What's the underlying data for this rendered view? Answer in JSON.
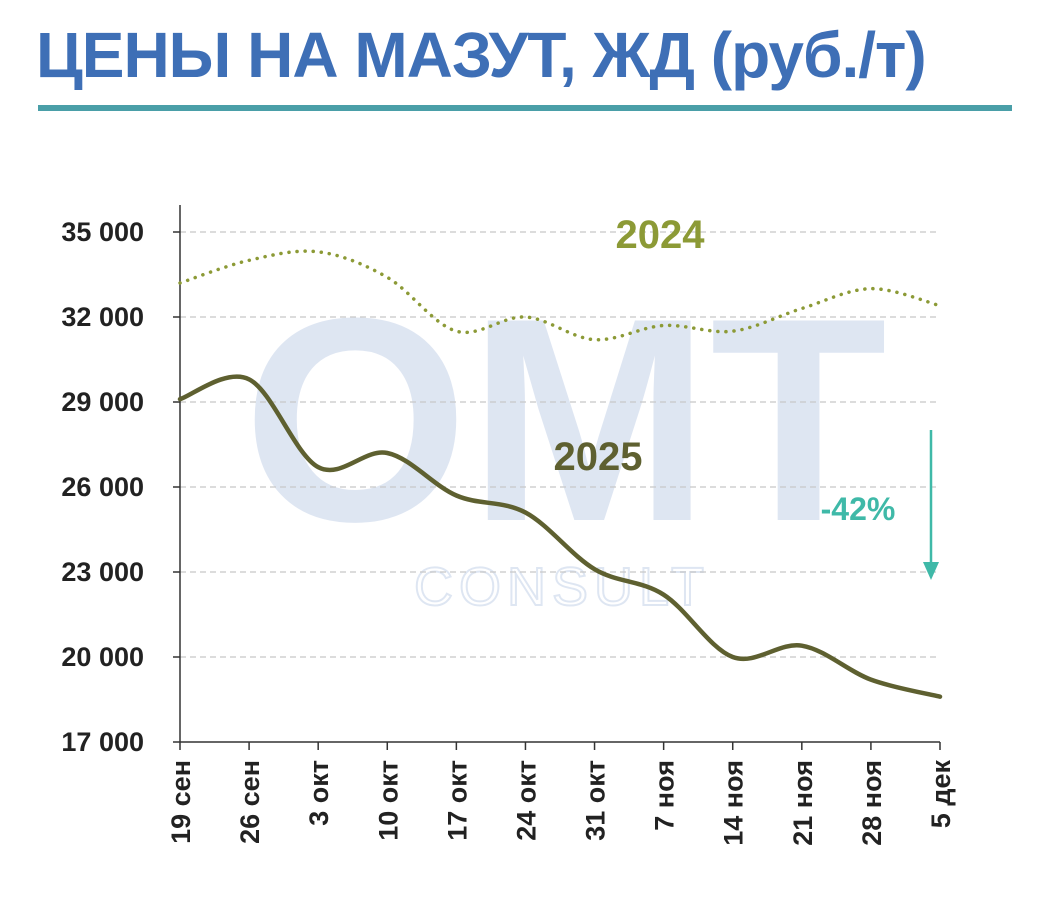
{
  "title": "ЦЕНЫ НА МАЗУТ, ЖД (руб./т)",
  "chart_data": {
    "type": "line",
    "x": [
      "19 сен",
      "26 сен",
      "3 окт",
      "10 окт",
      "17 окт",
      "24 окт",
      "31 окт",
      "7 ноя",
      "14 ноя",
      "21 ноя",
      "28 ноя",
      "5 дек"
    ],
    "ylim": [
      17000,
      35000
    ],
    "yticks": [
      17000,
      20000,
      23000,
      26000,
      29000,
      32000,
      35000
    ],
    "ytick_labels": [
      "17 000",
      "20 000",
      "23 000",
      "26 000",
      "29 000",
      "32 000",
      "35 000"
    ],
    "grid": true,
    "series": [
      {
        "name": "2024",
        "style": "dotted",
        "color": "#8c9a36",
        "values": [
          33200,
          34000,
          34300,
          33400,
          31500,
          32000,
          31200,
          31700,
          31500,
          32300,
          33000,
          32400
        ]
      },
      {
        "name": "2025",
        "style": "solid",
        "color": "#5e6030",
        "values": [
          29100,
          29800,
          26700,
          27200,
          25700,
          25100,
          23100,
          22200,
          20000,
          20400,
          19200,
          18600
        ]
      }
    ],
    "annotations": [
      {
        "text": "-42%",
        "color": "#3fb9a8",
        "arrow": "down"
      }
    ]
  }
}
